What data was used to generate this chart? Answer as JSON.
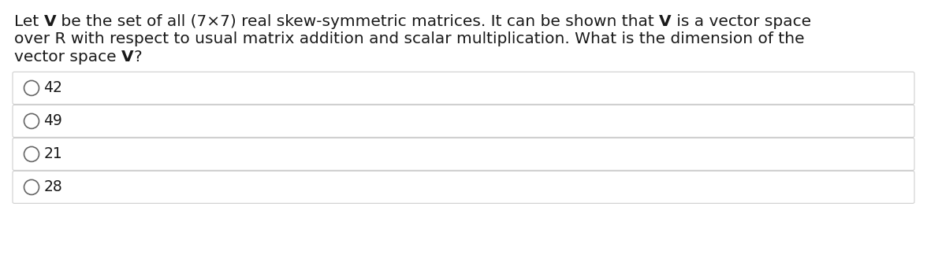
{
  "question_parts_line1": [
    [
      "Let ",
      false
    ],
    [
      "V",
      true
    ],
    [
      " be the set of all (7×7) real skew-symmetric matrices. It can be shown that ",
      false
    ],
    [
      "V",
      true
    ],
    [
      " is a vector space",
      false
    ]
  ],
  "question_parts_line2": [
    [
      "over R with respect to usual matrix addition and scalar multiplication. What is the dimension of the",
      false
    ]
  ],
  "question_parts_line3": [
    [
      "vector space ",
      false
    ],
    [
      "V",
      true
    ],
    [
      "?",
      false
    ]
  ],
  "options": [
    "42",
    "49",
    "21",
    "28"
  ],
  "bg_color": "#ffffff",
  "box_color": "#ffffff",
  "border_color": "#d0d0d0",
  "text_color": "#1a1a1a",
  "font_size_question": 14.5,
  "font_size_options": 13.5,
  "fig_width": 11.76,
  "fig_height": 3.33,
  "dpi": 100
}
